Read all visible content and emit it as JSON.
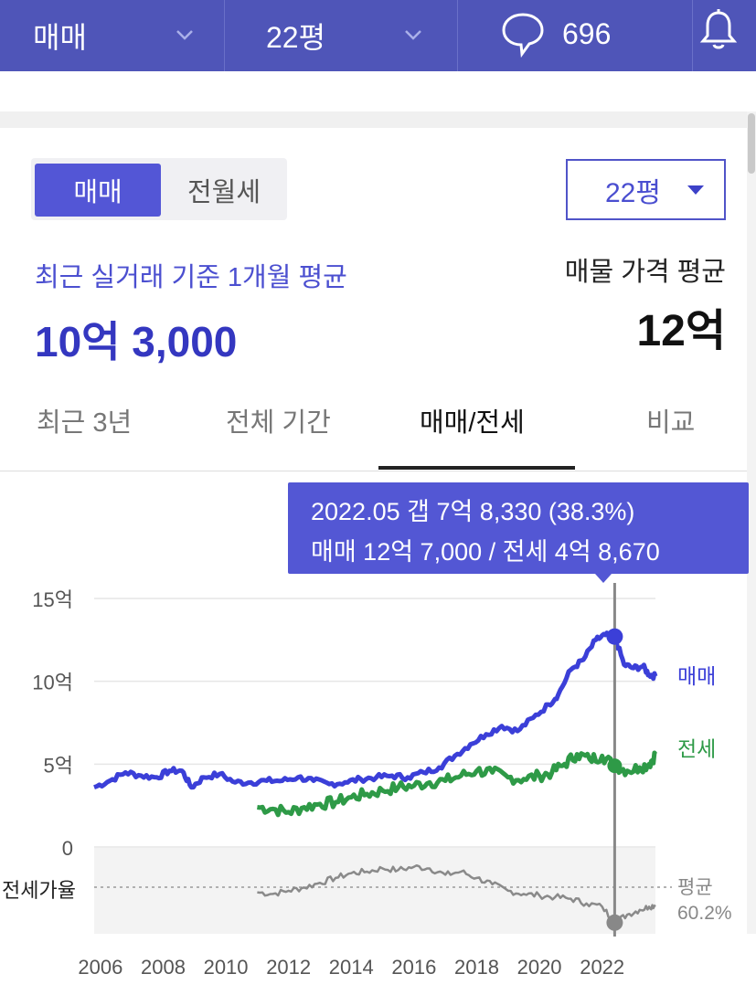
{
  "topbar": {
    "trade_type": "매매",
    "area": "22평",
    "comment_count": "696",
    "bg_color": "#4f55b8"
  },
  "toggle": {
    "active": "매매",
    "inactive": "전월세"
  },
  "area_dropdown": {
    "value": "22평"
  },
  "recent": {
    "label": "최근 실거래 기준 1개월 평균",
    "value": "10억 3,000"
  },
  "listing_avg": {
    "label": "매물 가격 평균",
    "value": "12억"
  },
  "tabs": [
    {
      "label": "최근 3년",
      "active": false
    },
    {
      "label": "전체 기간",
      "active": false
    },
    {
      "label": "매매/전세",
      "active": true
    },
    {
      "label": "비교",
      "active": false
    }
  ],
  "tooltip": {
    "line1": "2022.05  갭 7억 8,330 (38.3%)",
    "line2": "매매 12억 7,000 / 전세 4억 8,670"
  },
  "chart_data": {
    "type": "line",
    "x_ticks": [
      "2006",
      "2008",
      "2010",
      "2012",
      "2014",
      "2016",
      "2018",
      "2020",
      "2022"
    ],
    "y_ticks": [
      "15억",
      "10억",
      "5억",
      "0"
    ],
    "ylim": [
      0,
      15
    ],
    "xlim": [
      2005.8,
      2023.7
    ],
    "y_unit": "억",
    "series": [
      {
        "name": "매매",
        "color": "#3b3fd8",
        "points": [
          [
            2005.8,
            3.6
          ],
          [
            2006.3,
            4.0
          ],
          [
            2006.8,
            4.5
          ],
          [
            2007.3,
            4.3
          ],
          [
            2007.8,
            4.2
          ],
          [
            2008.2,
            4.6
          ],
          [
            2008.6,
            4.6
          ],
          [
            2008.9,
            3.6
          ],
          [
            2009.3,
            4.2
          ],
          [
            2009.8,
            4.4
          ],
          [
            2010.3,
            3.9
          ],
          [
            2010.8,
            3.9
          ],
          [
            2011.3,
            4.0
          ],
          [
            2011.8,
            4.0
          ],
          [
            2012.3,
            4.2
          ],
          [
            2012.8,
            4.0
          ],
          [
            2013.3,
            3.8
          ],
          [
            2013.8,
            3.9
          ],
          [
            2014.3,
            4.1
          ],
          [
            2014.8,
            4.2
          ],
          [
            2015.3,
            4.3
          ],
          [
            2015.8,
            4.2
          ],
          [
            2016.3,
            4.5
          ],
          [
            2016.8,
            4.8
          ],
          [
            2017.3,
            5.5
          ],
          [
            2017.8,
            6.2
          ],
          [
            2018.3,
            6.8
          ],
          [
            2018.8,
            7.3
          ],
          [
            2019.3,
            7.0
          ],
          [
            2019.8,
            7.8
          ],
          [
            2020.3,
            8.6
          ],
          [
            2020.6,
            9.2
          ],
          [
            2021.0,
            10.7
          ],
          [
            2021.4,
            11.3
          ],
          [
            2021.8,
            12.5
          ],
          [
            2022.1,
            12.8
          ],
          [
            2022.4,
            12.7
          ],
          [
            2022.7,
            11.0
          ],
          [
            2023.0,
            10.8
          ],
          [
            2023.3,
            10.9
          ],
          [
            2023.5,
            10.4
          ],
          [
            2023.7,
            10.3
          ]
        ]
      },
      {
        "name": "전세",
        "color": "#2e9a47",
        "points": [
          [
            2011.0,
            2.4
          ],
          [
            2011.5,
            2.3
          ],
          [
            2012.0,
            2.1
          ],
          [
            2012.5,
            2.4
          ],
          [
            2013.0,
            2.6
          ],
          [
            2013.5,
            2.7
          ],
          [
            2014.0,
            3.0
          ],
          [
            2014.5,
            3.2
          ],
          [
            2015.0,
            3.4
          ],
          [
            2015.5,
            3.6
          ],
          [
            2016.0,
            3.7
          ],
          [
            2016.5,
            3.9
          ],
          [
            2017.0,
            4.0
          ],
          [
            2017.5,
            4.3
          ],
          [
            2018.0,
            4.6
          ],
          [
            2018.5,
            4.5
          ],
          [
            2019.0,
            4.2
          ],
          [
            2019.5,
            4.1
          ],
          [
            2020.0,
            4.3
          ],
          [
            2020.4,
            4.5
          ],
          [
            2020.8,
            5.0
          ],
          [
            2021.2,
            5.6
          ],
          [
            2021.6,
            5.3
          ],
          [
            2022.0,
            5.5
          ],
          [
            2022.4,
            4.9
          ],
          [
            2022.8,
            4.6
          ],
          [
            2023.2,
            4.8
          ],
          [
            2023.5,
            5.0
          ],
          [
            2023.7,
            5.6
          ]
        ]
      }
    ],
    "jeonse_ratio": {
      "label": "전세가율",
      "average_label": "평균",
      "average_value": "60.2%",
      "average": 60.2,
      "color": "#8a8a8a",
      "points": [
        [
          2011.0,
          57
        ],
        [
          2011.5,
          56
        ],
        [
          2012.0,
          58
        ],
        [
          2012.5,
          60
        ],
        [
          2013.0,
          63
        ],
        [
          2013.5,
          66
        ],
        [
          2014.0,
          69
        ],
        [
          2014.5,
          70
        ],
        [
          2015.0,
          72
        ],
        [
          2015.5,
          71
        ],
        [
          2016.0,
          73
        ],
        [
          2016.5,
          72
        ],
        [
          2017.0,
          68
        ],
        [
          2017.5,
          70
        ],
        [
          2018.0,
          66
        ],
        [
          2018.5,
          62
        ],
        [
          2019.0,
          58
        ],
        [
          2019.5,
          56
        ],
        [
          2020.0,
          55
        ],
        [
          2020.5,
          54
        ],
        [
          2021.0,
          53
        ],
        [
          2021.5,
          50
        ],
        [
          2022.0,
          48
        ],
        [
          2022.4,
          38
        ],
        [
          2022.8,
          43
        ],
        [
          2023.2,
          46
        ],
        [
          2023.5,
          48
        ],
        [
          2023.7,
          49
        ]
      ]
    },
    "series_labels": {
      "sale": "매매",
      "jeonse": "전세"
    },
    "crosshair_x": 2022.4,
    "tooltip_date": "2022.05"
  }
}
